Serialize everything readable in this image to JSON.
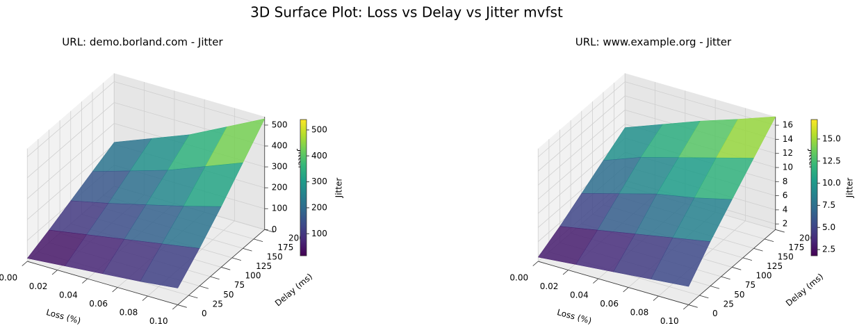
{
  "title": "3D Surface Plot: Loss vs Delay vs Jitter mvfst",
  "chart_data": [
    {
      "type": "surface",
      "title": "URL: demo.borland.com - Jitter",
      "xlabel": "Loss (%)",
      "ylabel": "Delay (ms)",
      "zlabel": "Jitter",
      "colorbar_label": "Jitter",
      "colormap": "viridis",
      "grid": true,
      "x": [
        0,
        0.025,
        0.05,
        0.075,
        0.1
      ],
      "y": [
        0,
        50,
        100,
        150,
        200
      ],
      "z": [
        [
          15,
          60,
          110,
          160,
          210
        ],
        [
          30,
          90,
          150,
          215,
          280
        ],
        [
          45,
          120,
          195,
          270,
          350
        ],
        [
          60,
          150,
          240,
          340,
          440
        ],
        [
          80,
          180,
          290,
          410,
          530
        ]
      ],
      "xlim": [
        0,
        0.1
      ],
      "ylim": [
        0,
        200
      ],
      "zlim": [
        0,
        540
      ],
      "xticks": [
        {
          "value": 0,
          "label": "0.00"
        },
        {
          "value": 0.02,
          "label": "0.02"
        },
        {
          "value": 0.04,
          "label": "0.04"
        },
        {
          "value": 0.06,
          "label": "0.06"
        },
        {
          "value": 0.08,
          "label": "0.08"
        },
        {
          "value": 0.1,
          "label": "0.10"
        }
      ],
      "yticks": [
        0,
        25,
        50,
        75,
        100,
        125,
        150,
        175,
        200
      ],
      "zticks": [
        0,
        100,
        200,
        300,
        400,
        500
      ],
      "clim": [
        15,
        540
      ],
      "cticks": [
        100,
        200,
        300,
        400,
        500
      ]
    },
    {
      "type": "surface",
      "title": "URL: www.example.org - Jitter",
      "xlabel": "Loss (%)",
      "ylabel": "Delay (ms)",
      "zlabel": "Jitter",
      "colorbar_label": "Jitter",
      "colormap": "viridis",
      "grid": true,
      "x": [
        0,
        0.025,
        0.05,
        0.075,
        0.1
      ],
      "y": [
        0,
        50,
        100,
        150,
        200
      ],
      "z": [
        [
          1.8,
          3.5,
          5.5,
          7.5,
          9.5
        ],
        [
          2.3,
          4.5,
          7.0,
          9.5,
          11.5
        ],
        [
          2.8,
          5.5,
          8.5,
          11.0,
          13.5
        ],
        [
          3.3,
          6.5,
          9.5,
          12.5,
          15.3
        ],
        [
          3.8,
          7.5,
          10.8,
          14.0,
          17.2
        ]
      ],
      "xlim": [
        0,
        0.1
      ],
      "ylim": [
        0,
        200
      ],
      "zlim": [
        1.2,
        17.2
      ],
      "xticks": [
        {
          "value": 0,
          "label": "0.00"
        },
        {
          "value": 0.02,
          "label": "0.02"
        },
        {
          "value": 0.04,
          "label": "0.04"
        },
        {
          "value": 0.06,
          "label": "0.06"
        },
        {
          "value": 0.08,
          "label": "0.08"
        },
        {
          "value": 0.1,
          "label": "0.10"
        }
      ],
      "yticks": [
        0,
        25,
        50,
        75,
        100,
        125,
        150,
        175,
        200
      ],
      "zticks": [
        2,
        4,
        6,
        8,
        10,
        12,
        14,
        16
      ],
      "clim": [
        1.8,
        17.2
      ],
      "cticks": [
        2.5,
        {
          "value": 5,
          "label": "5.0"
        },
        7.5,
        {
          "value": 10,
          "label": "10.0"
        },
        12.5,
        {
          "value": 15,
          "label": "15.0"
        }
      ]
    }
  ]
}
